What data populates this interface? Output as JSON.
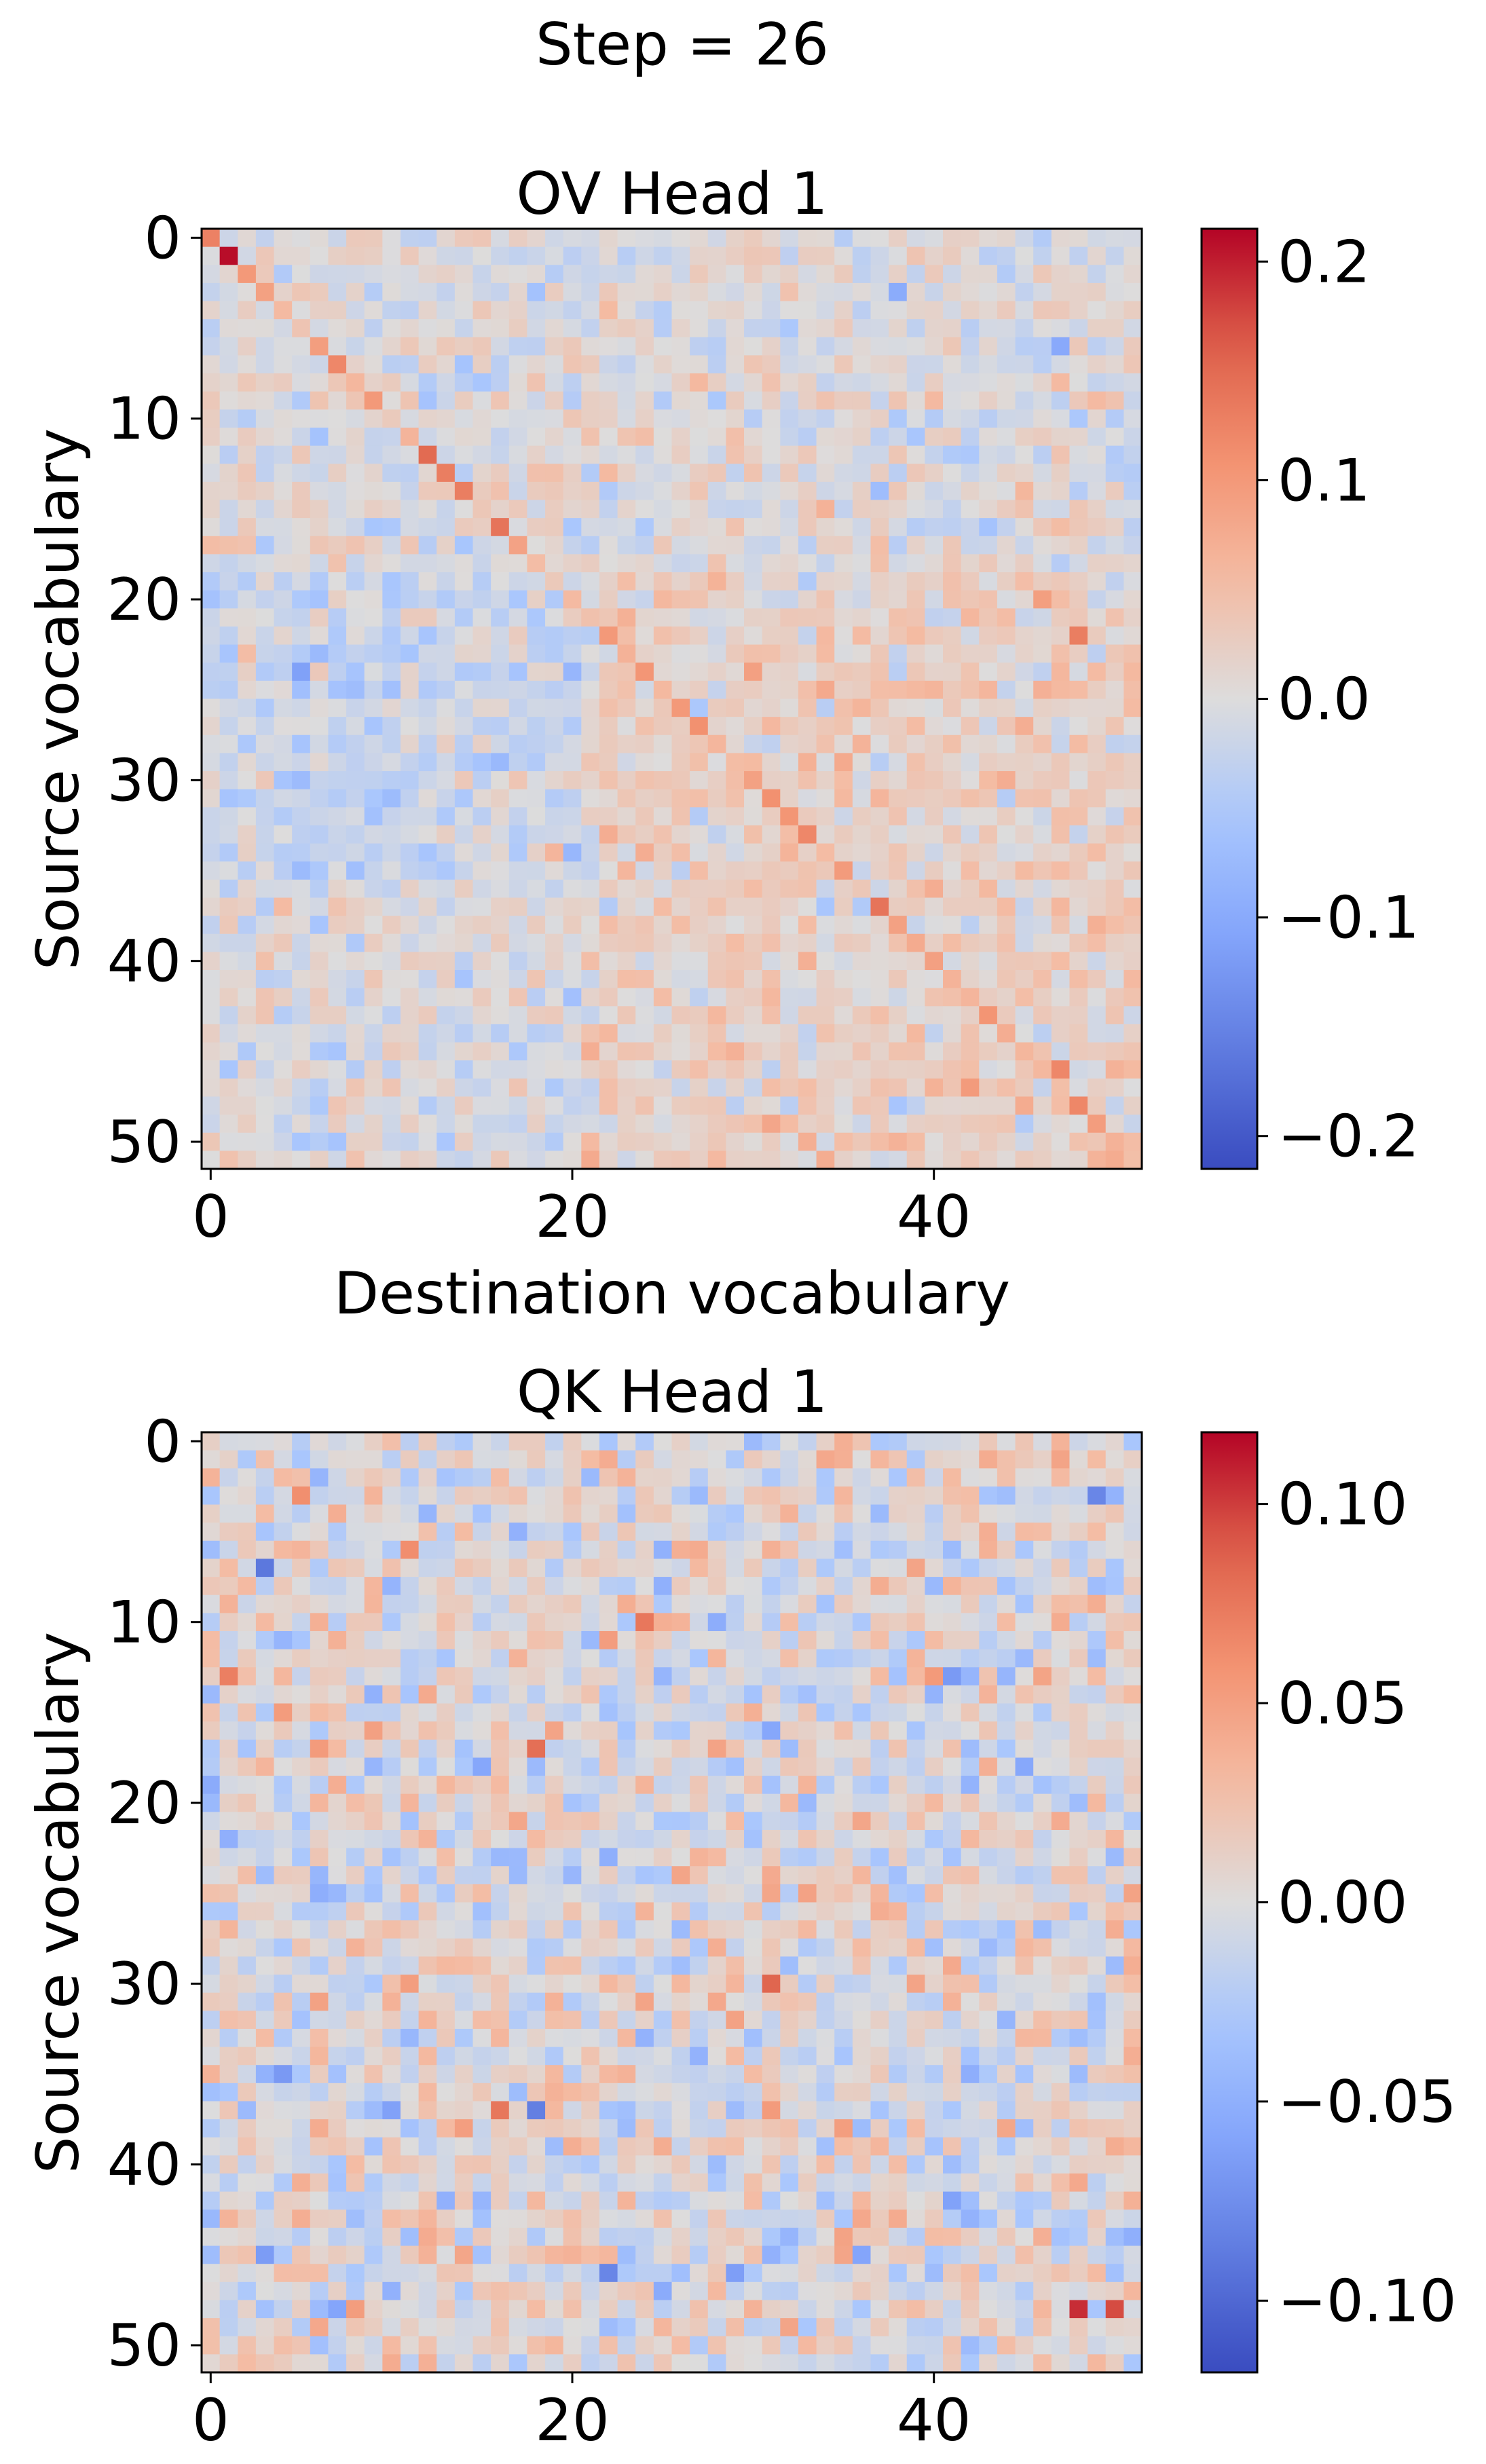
{
  "figure": {
    "suptitle": "Step = 26"
  },
  "chart_data": [
    {
      "type": "heatmap",
      "title": "OV Head 1",
      "xlabel": "Destination vocabulary",
      "ylabel": "Source vocabulary",
      "size": 52,
      "xticks": [
        0,
        20,
        40
      ],
      "yticks": [
        0,
        10,
        20,
        30,
        40,
        50
      ],
      "colormap": "coolwarm",
      "vmin": -0.215,
      "vmax": 0.215,
      "colorbar_ticks": [
        0.2,
        0.1,
        0.0,
        -0.1,
        -0.2
      ],
      "colorbar_tick_labels": [
        "0.2",
        "0.1",
        "0.0",
        "−0.1",
        "−0.2"
      ],
      "grid": false,
      "diagonal_strong": [
        [
          1,
          1,
          0.21
        ],
        [
          2,
          2,
          0.1
        ],
        [
          7,
          7,
          0.12
        ],
        [
          9,
          9,
          0.1
        ],
        [
          12,
          12,
          0.15
        ],
        [
          13,
          13,
          0.13
        ],
        [
          14,
          14,
          0.13
        ],
        [
          16,
          16,
          0.14
        ],
        [
          26,
          26,
          0.1
        ],
        [
          27,
          27,
          0.11
        ],
        [
          31,
          31,
          0.11
        ],
        [
          33,
          33,
          0.12
        ],
        [
          37,
          37,
          0.14
        ],
        [
          22,
          48,
          0.13
        ],
        [
          46,
          47,
          0.12
        ],
        [
          52,
          50,
          0.16
        ]
      ]
    },
    {
      "type": "heatmap",
      "title": "QK Head 1",
      "xlabel": "",
      "ylabel": "Source vocabulary",
      "size": 52,
      "xticks": [
        0,
        20,
        40
      ],
      "yticks": [
        0,
        10,
        20,
        30,
        40,
        50
      ],
      "colormap": "coolwarm",
      "vmin": -0.118,
      "vmax": 0.118,
      "colorbar_ticks": [
        0.1,
        0.05,
        0.0,
        -0.05,
        -0.1
      ],
      "colorbar_tick_labels": [
        "0.10",
        "0.05",
        "0.00",
        "−0.05",
        "−0.10"
      ],
      "grid": false,
      "peaks": [
        [
          48,
          48,
          0.105
        ],
        [
          48,
          50,
          0.095
        ],
        [
          30,
          31,
          0.085
        ],
        [
          17,
          18,
          0.08
        ],
        [
          10,
          24,
          0.075
        ],
        [
          7,
          3,
          -0.09
        ],
        [
          37,
          18,
          -0.085
        ],
        [
          46,
          22,
          -0.08
        ],
        [
          3,
          49,
          -0.08
        ]
      ]
    }
  ]
}
